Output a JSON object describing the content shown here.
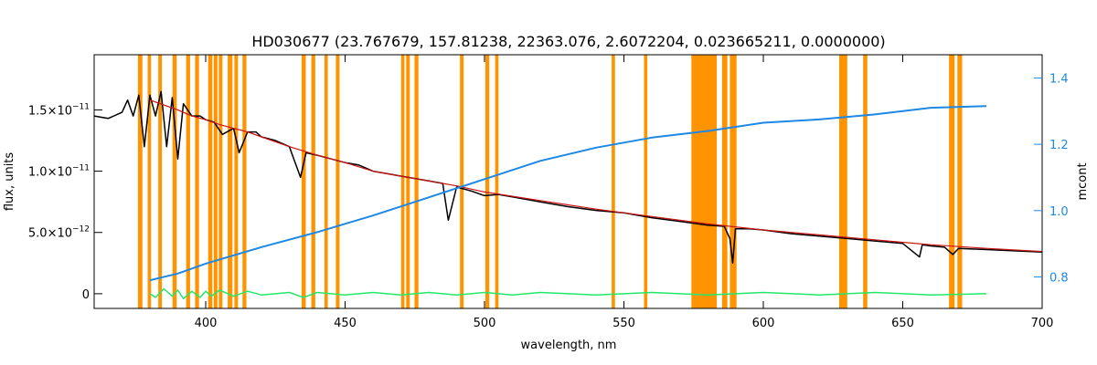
{
  "chart_data": {
    "type": "line",
    "title": "HD030677    (23.767679, 157.81238, 22363.076, 2.6072204, 0.023665211, 0.0000000)",
    "xlabel": "wavelength, nm",
    "ylabel": "flux, units",
    "y2label": "mcont",
    "xlim": [
      360,
      700
    ],
    "ylim": [
      -1.2e-12,
      1.95e-11
    ],
    "y2lim": [
      0.705,
      1.47
    ],
    "x_ticks": [
      400,
      450,
      500,
      550,
      600,
      650,
      700
    ],
    "y_ticks": [
      {
        "value": 0,
        "label_main": "0",
        "label_exp": ""
      },
      {
        "value": 5e-12,
        "label_main": "5.0×10",
        "label_exp": "−12"
      },
      {
        "value": 1e-11,
        "label_main": "1.0×10",
        "label_exp": "−11"
      },
      {
        "value": 1.5e-11,
        "label_main": "1.5×10",
        "label_exp": "−11"
      }
    ],
    "y2_ticks": [
      0.8,
      1.0,
      1.2,
      1.4
    ],
    "y2_tick_labels": [
      "0.8",
      "1.0",
      "1.2",
      "1.4"
    ],
    "masked_regions": [
      [
        375.7,
        377.3
      ],
      [
        379.2,
        380.4
      ],
      [
        383.0,
        384.3
      ],
      [
        388.1,
        389.6
      ],
      [
        393.0,
        394.4
      ],
      [
        396.2,
        397.6
      ],
      [
        400.9,
        402.4
      ],
      [
        402.9,
        404.2
      ],
      [
        404.7,
        406.0
      ],
      [
        407.9,
        409.6
      ],
      [
        410.3,
        411.6
      ],
      [
        413.2,
        414.6
      ],
      [
        434.4,
        435.9
      ],
      [
        437.9,
        439.3
      ],
      [
        442.6,
        443.8
      ],
      [
        446.7,
        448.0
      ],
      [
        470.1,
        471.3
      ],
      [
        471.9,
        473.2
      ],
      [
        474.9,
        476.3
      ],
      [
        491.2,
        492.5
      ],
      [
        500.3,
        501.7
      ],
      [
        503.8,
        505.0
      ],
      [
        545.6,
        546.8
      ],
      [
        557.2,
        558.4
      ],
      [
        574.2,
        583.3
      ],
      [
        585.2,
        587.1
      ],
      [
        588.0,
        590.4
      ],
      [
        627.2,
        630.1
      ],
      [
        635.8,
        637.3
      ],
      [
        666.6,
        668.6
      ],
      [
        669.6,
        671.3
      ]
    ],
    "series": [
      {
        "role": "observed_flux",
        "color": "#000000",
        "x": [
          360,
          365,
          370,
          372,
          374,
          376,
          378,
          380,
          382,
          384,
          386,
          388,
          390,
          392,
          395,
          398,
          400,
          403,
          406,
          410,
          412,
          415,
          418,
          420,
          425,
          430,
          434,
          436,
          440,
          445,
          450,
          455,
          460,
          465,
          470,
          475,
          480,
          485,
          487,
          490,
          495,
          500,
          505,
          510,
          520,
          530,
          540,
          550,
          560,
          570,
          580,
          586,
          588,
          589,
          590,
          595,
          600,
          610,
          620,
          630,
          640,
          650,
          656,
          657,
          660,
          665,
          668,
          670,
          680,
          690,
          700
        ],
        "y": [
          1.45e-11,
          1.43e-11,
          1.48e-11,
          1.58e-11,
          1.45e-11,
          1.62e-11,
          1.2e-11,
          1.62e-11,
          1.45e-11,
          1.65e-11,
          1.2e-11,
          1.6e-11,
          1.1e-11,
          1.55e-11,
          1.45e-11,
          1.45e-11,
          1.42e-11,
          1.4e-11,
          1.3e-11,
          1.35e-11,
          1.15e-11,
          1.32e-11,
          1.32e-11,
          1.28e-11,
          1.25e-11,
          1.2e-11,
          9.5e-12,
          1.15e-11,
          1.13e-11,
          1.1e-11,
          1.07e-11,
          1.05e-11,
          1e-11,
          9.8e-12,
          9.6e-12,
          9.4e-12,
          9.2e-12,
          9e-12,
          6e-12,
          8.7e-12,
          8.4e-12,
          8e-12,
          8.1e-12,
          7.9e-12,
          7.5e-12,
          7.1e-12,
          6.8e-12,
          6.6e-12,
          6.2e-12,
          5.9e-12,
          5.6e-12,
          5.5e-12,
          4.5e-12,
          2.5e-12,
          5.3e-12,
          5.3e-12,
          5.2e-12,
          4.9e-12,
          4.7e-12,
          4.5e-12,
          4.3e-12,
          4.1e-12,
          3e-12,
          4e-12,
          3.9e-12,
          3.8e-12,
          3.2e-12,
          3.7e-12,
          3.6e-12,
          3.5e-12,
          3.4e-12
        ]
      },
      {
        "role": "model_fit",
        "color": "#cc1111",
        "x": [
          380,
          385,
          390,
          395,
          400,
          405,
          410,
          415,
          420,
          430,
          440,
          450,
          460,
          470,
          480,
          490,
          500,
          520,
          540,
          560,
          580,
          600,
          620,
          640,
          660,
          680,
          700
        ],
        "y": [
          1.58e-11,
          1.54e-11,
          1.5e-11,
          1.45e-11,
          1.42e-11,
          1.38e-11,
          1.35e-11,
          1.32e-11,
          1.28e-11,
          1.2e-11,
          1.13e-11,
          1.07e-11,
          1e-11,
          9.6e-12,
          9.2e-12,
          8.8e-12,
          8.3e-12,
          7.6e-12,
          6.9e-12,
          6.3e-12,
          5.7e-12,
          5.2e-12,
          4.8e-12,
          4.4e-12,
          4e-12,
          3.7e-12,
          3.45e-12
        ]
      },
      {
        "role": "mcont",
        "axis": "right",
        "color": "#1e88e5",
        "x": [
          380,
          390,
          400,
          420,
          440,
          460,
          480,
          500,
          520,
          540,
          560,
          580,
          600,
          620,
          640,
          660,
          680
        ],
        "y": [
          0.79,
          0.81,
          0.84,
          0.89,
          0.935,
          0.985,
          1.04,
          1.095,
          1.15,
          1.19,
          1.22,
          1.24,
          1.265,
          1.275,
          1.29,
          1.31,
          1.315
        ]
      },
      {
        "role": "residuals",
        "color": "#22e86a",
        "x": [
          380,
          382,
          385,
          388,
          390,
          392,
          395,
          398,
          400,
          402,
          405,
          410,
          415,
          420,
          430,
          435,
          440,
          450,
          460,
          470,
          480,
          490,
          500,
          510,
          520,
          540,
          560,
          580,
          600,
          620,
          640,
          660,
          680
        ],
        "y": [
          0,
          -3e-13,
          4e-13,
          -2e-13,
          3e-13,
          -4e-13,
          2e-13,
          -3e-13,
          2e-13,
          -2e-13,
          3e-13,
          -2e-13,
          2e-13,
          -1e-13,
          1e-13,
          -3e-13,
          1e-13,
          -1e-13,
          1e-13,
          -1e-13,
          1e-13,
          -1e-13,
          1e-13,
          -1e-13,
          1e-13,
          -1e-13,
          1e-13,
          -1e-13,
          1e-13,
          -1e-13,
          1e-13,
          -1e-13,
          0
        ]
      }
    ]
  }
}
